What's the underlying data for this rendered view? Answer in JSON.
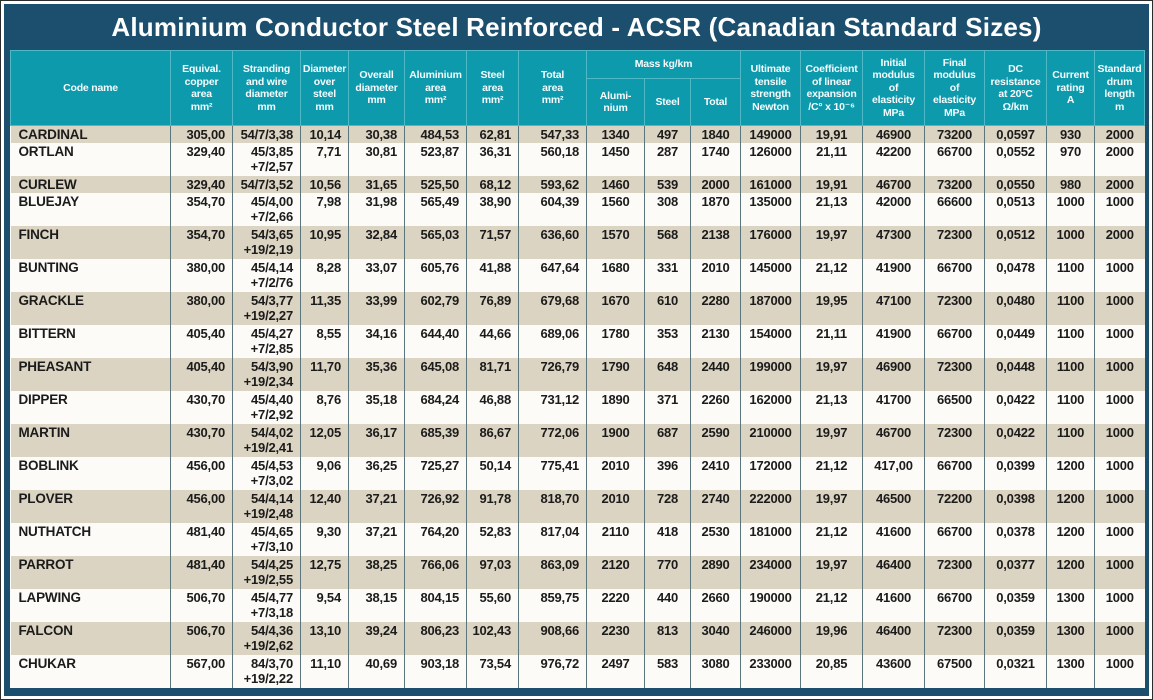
{
  "title": "Aluminium Conductor Steel Reinforced - ACSR (Canadian Standard Sizes)",
  "colors": {
    "frame_navy": "#1b4f6d",
    "header_teal": "#0d9aad",
    "header_border": "#4fb9c6",
    "row_beige": "#dcd4c2",
    "row_white": "#fcfbf8",
    "cell_border": "#5a757c",
    "data_text": "#1b1b1b",
    "header_text": "#ffffff"
  },
  "header": {
    "cols": [
      "Code name",
      "Equival.\ncopper\narea\nmm²",
      "Stranding\nand wire\ndiameter\nmm",
      "Diameter\nover\nsteel\nmm",
      "Overall\ndiameter\nmm",
      "Aluminium\narea\nmm²",
      "Steel\narea\nmm²",
      "Total\narea\nmm²",
      "Ultimate\ntensile\nstrength\nNewton",
      "Coefficient\nof linear\nexpansion\n/C° x 10⁻⁶",
      "Initial\nmodulus\nof\nelasticity\nMPa",
      "Final\nmodulus\nof\nelasticity\nMPa",
      "DC\nresistance\nat 20°C\nΩ/km",
      "Current\nrating\nA",
      "Standard\ndrum\nlength\nm"
    ],
    "mass_group": "Mass kg/km",
    "mass_subs": [
      "Alumi-\nnium",
      "Steel",
      "Total"
    ]
  },
  "chart_data": {
    "type": "table",
    "title": "Aluminium Conductor Steel Reinforced - ACSR (Canadian Standard Sizes)",
    "columns": [
      "Code name",
      "Equival. copper area mm²",
      "Stranding and wire diameter mm",
      "Diameter over steel mm",
      "Overall diameter mm",
      "Aluminium area mm²",
      "Steel area mm²",
      "Total area mm²",
      "Mass Aluminium kg/km",
      "Mass Steel kg/km",
      "Mass Total kg/km",
      "Ultimate tensile strength Newton",
      "Coefficient of linear expansion /C° x 10⁻⁶",
      "Initial modulus of elasticity MPa",
      "Final modulus of elasticity MPa",
      "DC resistance at 20°C Ω/km",
      "Current rating A",
      "Standard drum length m"
    ],
    "rows": [
      [
        "CARDINAL",
        "305,00",
        "54/7/3,38",
        "10,14",
        "30,38",
        "484,53",
        "62,81",
        "547,33",
        "1340",
        "497",
        "1840",
        "149000",
        "19,91",
        "46900",
        "73200",
        "0,0597",
        "930",
        "2000"
      ],
      [
        "ORTLAN",
        "329,40",
        "45/3,85\n+7/2,57",
        "7,71",
        "30,81",
        "523,87",
        "36,31",
        "560,18",
        "1450",
        "287",
        "1740",
        "126000",
        "21,11",
        "42200",
        "66700",
        "0,0552",
        "970",
        "2000"
      ],
      [
        "CURLEW",
        "329,40",
        "54/7/3,52",
        "10,56",
        "31,65",
        "525,50",
        "68,12",
        "593,62",
        "1460",
        "539",
        "2000",
        "161000",
        "19,91",
        "46700",
        "73200",
        "0,0550",
        "980",
        "2000"
      ],
      [
        "BLUEJAY",
        "354,70",
        "45/4,00\n+7/2,66",
        "7,98",
        "31,98",
        "565,49",
        "38,90",
        "604,39",
        "1560",
        "308",
        "1870",
        "135000",
        "21,13",
        "42000",
        "66600",
        "0,0513",
        "1000",
        "1000"
      ],
      [
        "FINCH",
        "354,70",
        "54/3,65\n+19/2,19",
        "10,95",
        "32,84",
        "565,03",
        "71,57",
        "636,60",
        "1570",
        "568",
        "2138",
        "176000",
        "19,97",
        "47300",
        "72300",
        "0,0512",
        "1000",
        "2000"
      ],
      [
        "BUNTING",
        "380,00",
        "45/4,14\n+7/2/76",
        "8,28",
        "33,07",
        "605,76",
        "41,88",
        "647,64",
        "1680",
        "331",
        "2010",
        "145000",
        "21,12",
        "41900",
        "66700",
        "0,0478",
        "1100",
        "1000"
      ],
      [
        "GRACKLE",
        "380,00",
        "54/3,77\n+19/2,27",
        "11,35",
        "33,99",
        "602,79",
        "76,89",
        "679,68",
        "1670",
        "610",
        "2280",
        "187000",
        "19,95",
        "47100",
        "72300",
        "0,0480",
        "1100",
        "1000"
      ],
      [
        "BITTERN",
        "405,40",
        "45/4,27\n+7/2,85",
        "8,55",
        "34,16",
        "644,40",
        "44,66",
        "689,06",
        "1780",
        "353",
        "2130",
        "154000",
        "21,11",
        "41900",
        "66700",
        "0,0449",
        "1100",
        "1000"
      ],
      [
        "PHEASANT",
        "405,40",
        "54/3,90\n+19/2,34",
        "11,70",
        "35,36",
        "645,08",
        "81,71",
        "726,79",
        "1790",
        "648",
        "2440",
        "199000",
        "19,97",
        "46900",
        "72300",
        "0,0448",
        "1100",
        "1000"
      ],
      [
        "DIPPER",
        "430,70",
        "45/4,40\n+7/2,92",
        "8,76",
        "35,18",
        "684,24",
        "46,88",
        "731,12",
        "1890",
        "371",
        "2260",
        "162000",
        "21,13",
        "41700",
        "66500",
        "0,0422",
        "1100",
        "1000"
      ],
      [
        "MARTIN",
        "430,70",
        "54/4,02\n+19/2,41",
        "12,05",
        "36,17",
        "685,39",
        "86,67",
        "772,06",
        "1900",
        "687",
        "2590",
        "210000",
        "19,97",
        "46700",
        "72300",
        "0,0422",
        "1100",
        "1000"
      ],
      [
        "BOBLINK",
        "456,00",
        "45/4,53\n+7/3,02",
        "9,06",
        "36,25",
        "725,27",
        "50,14",
        "775,41",
        "2010",
        "396",
        "2410",
        "172000",
        "21,12",
        "417,00",
        "66700",
        "0,0399",
        "1200",
        "1000"
      ],
      [
        "PLOVER",
        "456,00",
        "54/4,14\n+19/2,48",
        "12,40",
        "37,21",
        "726,92",
        "91,78",
        "818,70",
        "2010",
        "728",
        "2740",
        "222000",
        "19,97",
        "46500",
        "72200",
        "0,0398",
        "1200",
        "1000"
      ],
      [
        "NUTHATCH",
        "481,40",
        "45/4,65\n+7/3,10",
        "9,30",
        "37,21",
        "764,20",
        "52,83",
        "817,04",
        "2110",
        "418",
        "2530",
        "181000",
        "21,12",
        "41600",
        "66700",
        "0,0378",
        "1200",
        "1000"
      ],
      [
        "PARROT",
        "481,40",
        "54/4,25\n+19/2,55",
        "12,75",
        "38,25",
        "766,06",
        "97,03",
        "863,09",
        "2120",
        "770",
        "2890",
        "234000",
        "19,97",
        "46400",
        "72300",
        "0,0377",
        "1200",
        "1000"
      ],
      [
        "LAPWING",
        "506,70",
        "45/4,77\n+7/3,18",
        "9,54",
        "38,15",
        "804,15",
        "55,60",
        "859,75",
        "2220",
        "440",
        "2660",
        "190000",
        "21,12",
        "41600",
        "66700",
        "0,0359",
        "1300",
        "1000"
      ],
      [
        "FALCON",
        "506,70",
        "54/4,36\n+19/2,62",
        "13,10",
        "39,24",
        "806,23",
        "102,43",
        "908,66",
        "2230",
        "813",
        "3040",
        "246000",
        "19,96",
        "46400",
        "72300",
        "0,0359",
        "1300",
        "1000"
      ],
      [
        "CHUKAR",
        "567,00",
        "84/3,70\n+19/2,22",
        "11,10",
        "40,69",
        "903,18",
        "73,54",
        "976,72",
        "2497",
        "583",
        "3080",
        "233000",
        "20,85",
        "43600",
        "67500",
        "0,0321",
        "1300",
        "1000"
      ]
    ]
  }
}
